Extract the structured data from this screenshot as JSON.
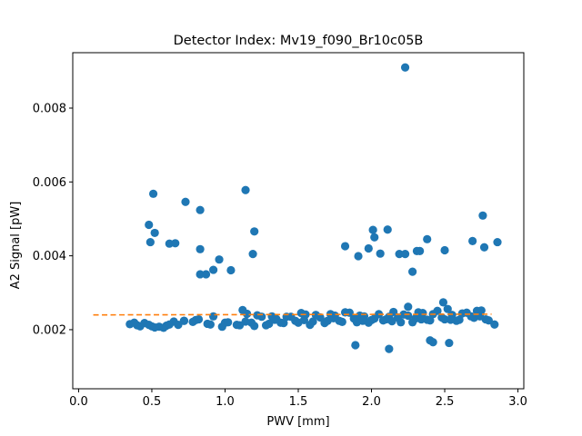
{
  "chart_data": {
    "type": "scatter",
    "title": "Detector Index: Mv19_f090_Br10c05B",
    "xlabel": "PWV [mm]",
    "ylabel": "A2 Signal [pW]",
    "xlim": [
      -0.04,
      3.04
    ],
    "ylim": [
      0.0004,
      0.0095
    ],
    "xticks": [
      0.0,
      0.5,
      1.0,
      1.5,
      2.0,
      2.5,
      3.0
    ],
    "xtick_labels": [
      "0.0",
      "0.5",
      "1.0",
      "1.5",
      "2.0",
      "2.5",
      "3.0"
    ],
    "yticks": [
      0.002,
      0.004,
      0.006,
      0.008
    ],
    "ytick_labels": [
      "0.002",
      "0.004",
      "0.006",
      "0.008"
    ],
    "grid": false,
    "colors": {
      "points": "#1f77b4",
      "fit": "#ff7f0e",
      "axes": "#000000"
    },
    "series": [
      {
        "name": "measurements",
        "style": "markers",
        "x": [
          2.23,
          0.51,
          1.14,
          0.73,
          0.83,
          0.48,
          0.52,
          2.11,
          2.01,
          2.76,
          1.2,
          2.02,
          0.49,
          0.62,
          0.66,
          2.69,
          2.86,
          2.77,
          2.19,
          1.82,
          2.38,
          0.83,
          2.31,
          2.33,
          1.98,
          2.06,
          2.5,
          2.23,
          1.91,
          1.19,
          0.96,
          1.04,
          0.92,
          0.83,
          0.87,
          2.28,
          2.49,
          2.25,
          2.4,
          2.53,
          2.42,
          2.12,
          1.89,
          0.35,
          0.4,
          0.45,
          0.5,
          0.55,
          0.6,
          0.65,
          0.72,
          0.8,
          0.9,
          1.0,
          1.1,
          1.2,
          1.3,
          1.4,
          1.5,
          1.6,
          1.7,
          1.8,
          1.9,
          2.0,
          2.1,
          2.2,
          2.3,
          2.4,
          2.5,
          2.6,
          2.7,
          2.8,
          0.38,
          0.48,
          0.58,
          0.68,
          0.78,
          0.88,
          0.98,
          1.08,
          1.18,
          1.28,
          1.38,
          1.48,
          1.58,
          1.68,
          1.78,
          1.88,
          1.98,
          2.08,
          2.18,
          2.28,
          2.38,
          2.48,
          2.58,
          2.68,
          2.78,
          1.15,
          1.25,
          1.35,
          1.45,
          1.55,
          1.65,
          1.75,
          1.85,
          1.95,
          2.05,
          2.15,
          2.25,
          2.35,
          2.45,
          2.55,
          2.65,
          2.75,
          1.12,
          1.32,
          1.52,
          1.72,
          1.92,
          2.12,
          2.32,
          2.52,
          2.72,
          2.62,
          2.42,
          2.22,
          2.02,
          1.82,
          1.62,
          1.42,
          1.22,
          0.42,
          0.52,
          0.62,
          0.72,
          0.82,
          0.92,
          1.02,
          1.14,
          1.34,
          1.54,
          1.74,
          1.94,
          2.14,
          2.34,
          2.54,
          2.74,
          2.84
        ],
        "y": [
          0.0091,
          0.00568,
          0.00578,
          0.00546,
          0.00524,
          0.00484,
          0.00462,
          0.00471,
          0.0047,
          0.00509,
          0.00466,
          0.0045,
          0.00437,
          0.00433,
          0.00434,
          0.0044,
          0.00437,
          0.00423,
          0.00405,
          0.00426,
          0.00445,
          0.00418,
          0.00413,
          0.00413,
          0.0042,
          0.00406,
          0.00415,
          0.00405,
          0.00399,
          0.00405,
          0.0039,
          0.00361,
          0.00362,
          0.0035,
          0.0035,
          0.00357,
          0.00274,
          0.00262,
          0.00171,
          0.00164,
          0.00166,
          0.00148,
          0.00158,
          0.00215,
          0.00212,
          0.00218,
          0.00209,
          0.00208,
          0.00211,
          0.00222,
          0.00224,
          0.00226,
          0.00214,
          0.00219,
          0.00212,
          0.0021,
          0.00216,
          0.00218,
          0.00219,
          0.00222,
          0.00224,
          0.00221,
          0.0022,
          0.00226,
          0.00228,
          0.0022,
          0.0023,
          0.00225,
          0.00228,
          0.00227,
          0.00232,
          0.00225,
          0.00219,
          0.00213,
          0.00205,
          0.00213,
          0.00221,
          0.00216,
          0.00208,
          0.00213,
          0.00219,
          0.00212,
          0.00219,
          0.00224,
          0.00213,
          0.00218,
          0.00224,
          0.0023,
          0.00219,
          0.00225,
          0.00233,
          0.0022,
          0.00227,
          0.00233,
          0.00224,
          0.00236,
          0.00228,
          0.00243,
          0.00235,
          0.00229,
          0.00235,
          0.00241,
          0.00233,
          0.00238,
          0.00246,
          0.00236,
          0.00242,
          0.00248,
          0.00238,
          0.00245,
          0.00251,
          0.0024,
          0.00246,
          0.00252,
          0.00253,
          0.00236,
          0.00245,
          0.00242,
          0.00238,
          0.00235,
          0.00247,
          0.00256,
          0.00251,
          0.00244,
          0.00242,
          0.00241,
          0.0023,
          0.00247,
          0.0024,
          0.00235,
          0.00239,
          0.00209,
          0.00206,
          0.00214,
          0.00224,
          0.00228,
          0.00236,
          0.0022,
          0.00222,
          0.00227,
          0.00226,
          0.00231,
          0.00224,
          0.00223,
          0.00228,
          0.00227,
          0.00236,
          0.00214
        ]
      },
      {
        "name": "fit",
        "style": "dashed-line",
        "x": [
          0.1,
          2.82
        ],
        "y": [
          0.0024,
          0.00242
        ]
      }
    ]
  }
}
